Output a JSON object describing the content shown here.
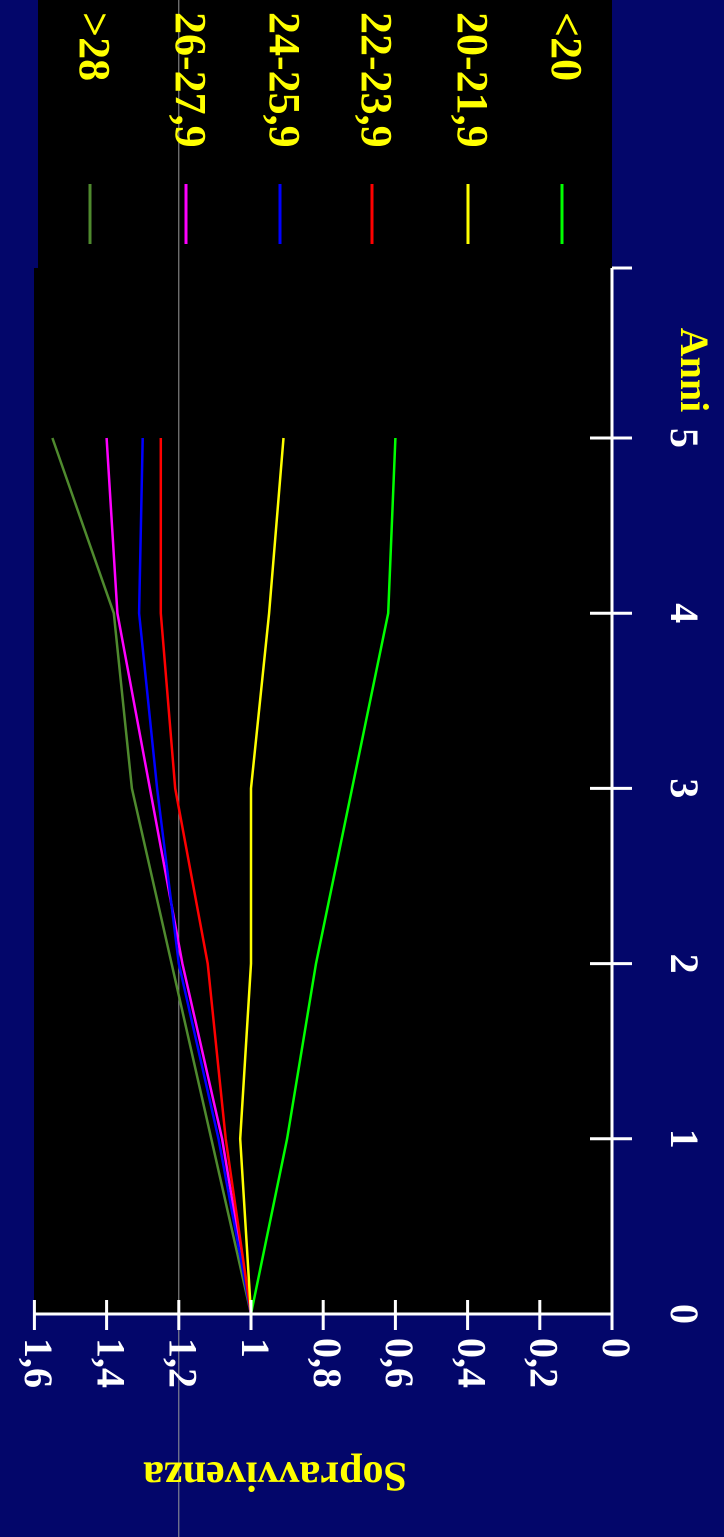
{
  "chart_data": {
    "type": "line",
    "title": "",
    "xlabel": "Anni",
    "ylabel": "Sopravvivenza",
    "x": [
      0,
      1,
      2,
      3,
      4,
      5
    ],
    "xlim": [
      0,
      5.5
    ],
    "ylim": [
      0,
      1.6
    ],
    "x_ticks": [
      "0",
      "1",
      "2",
      "3",
      "4",
      "5"
    ],
    "y_ticks": [
      "0",
      "0,2",
      "0,4",
      "0,6",
      "0,8",
      "1",
      "1,2",
      "1,4",
      "1,6"
    ],
    "reference_line_y": 1.2,
    "orientation": "rotated 90° clockwise",
    "legend_position": "top",
    "series": [
      {
        "name": ">28",
        "color": "#4f8a2e",
        "values": [
          1.0,
          1.11,
          1.22,
          1.33,
          1.38,
          1.55
        ]
      },
      {
        "name": "26-27,9",
        "color": "#ff00ff",
        "values": [
          1.0,
          1.08,
          1.19,
          1.28,
          1.37,
          1.4
        ]
      },
      {
        "name": "24-25,9",
        "color": "#0000ff",
        "values": [
          1.0,
          1.09,
          1.2,
          1.26,
          1.31,
          1.3
        ]
      },
      {
        "name": "22-23,9",
        "color": "#ff0000",
        "values": [
          1.0,
          1.07,
          1.12,
          1.21,
          1.25,
          1.25
        ]
      },
      {
        "name": "20-21,9",
        "color": "#ffff00",
        "values": [
          1.0,
          1.03,
          1.0,
          1.0,
          0.95,
          0.91
        ]
      },
      {
        "name": "<20",
        "color": "#00ff00",
        "values": [
          1.0,
          0.9,
          0.82,
          0.72,
          0.62,
          0.6
        ]
      }
    ]
  }
}
